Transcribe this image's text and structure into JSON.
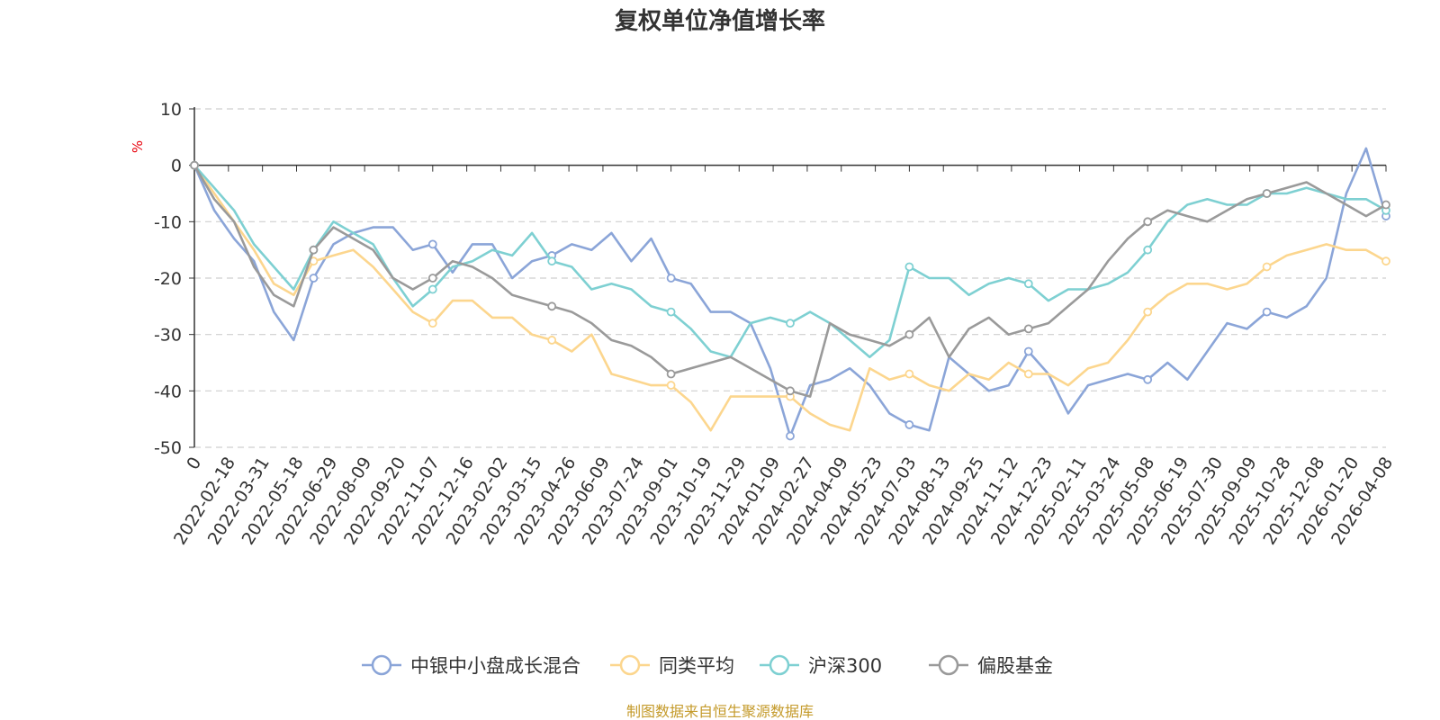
{
  "chart_data": {
    "type": "line",
    "title": "复权单位净值增长率",
    "ylabel": "%",
    "xlabel": "",
    "ylim": [
      -50,
      10
    ],
    "yticks": [
      10,
      0,
      -10,
      -20,
      -30,
      -40,
      -50
    ],
    "xtick_labels": [
      "0",
      "2022-02-18",
      "2022-03-31",
      "2022-05-18",
      "2022-06-29",
      "2022-08-09",
      "2022-09-20",
      "2022-11-07",
      "2022-12-16",
      "2023-02-02",
      "2023-03-15",
      "2023-04-26",
      "2023-06-09",
      "2023-07-24",
      "2023-09-01",
      "2023-10-19",
      "2023-11-29",
      "2024-01-09",
      "2024-02-27",
      "2024-04-09",
      "2024-05-23",
      "2024-07-03",
      "2024-08-13",
      "2024-09-25",
      "2024-11-12",
      "2024-12-23",
      "2025-02-11",
      "2025-03-24",
      "2025-05-08",
      "2025-06-19",
      "2025-07-30",
      "2025-09-09",
      "2025-10-28",
      "2025-12-08",
      "2026-01-20",
      "2026-04-08"
    ],
    "legend_position": "bottom",
    "source": "制图数据来自恒生聚源数据库",
    "series": [
      {
        "name": "中银中小盘成长混合",
        "color": "#8ba5d8",
        "values": [
          0,
          -8,
          -13,
          -17,
          -26,
          -31,
          -20,
          -14,
          -12,
          -11,
          -11,
          -15,
          -14,
          -19,
          -14,
          -14,
          -20,
          -17,
          -16,
          -14,
          -15,
          -12,
          -17,
          -13,
          -20,
          -21,
          -26,
          -26,
          -28,
          -36,
          -48,
          -39,
          -38,
          -36,
          -39,
          -44,
          -46,
          -47,
          -34,
          -37,
          -40,
          -39,
          -33,
          -37,
          -44,
          -39,
          -38,
          -37,
          -38,
          -35,
          -38,
          -33,
          -28,
          -29,
          -26,
          -27,
          -25,
          -20,
          -5,
          3,
          -9
        ]
      },
      {
        "name": "同类平均",
        "color": "#fcd68e",
        "values": [
          0,
          -5,
          -10,
          -15,
          -21,
          -23,
          -17,
          -16,
          -15,
          -18,
          -22,
          -26,
          -28,
          -24,
          -24,
          -27,
          -27,
          -30,
          -31,
          -33,
          -30,
          -37,
          -38,
          -39,
          -39,
          -42,
          -47,
          -41,
          -41,
          -41,
          -41,
          -44,
          -46,
          -47,
          -36,
          -38,
          -37,
          -39,
          -40,
          -37,
          -38,
          -35,
          -37,
          -37,
          -39,
          -36,
          -35,
          -31,
          -26,
          -23,
          -21,
          -21,
          -22,
          -21,
          -18,
          -16,
          -15,
          -14,
          -15,
          -15,
          -17
        ]
      },
      {
        "name": "沪深300",
        "color": "#7ed0d2",
        "values": [
          0,
          -4,
          -8,
          -14,
          -18,
          -22,
          -15,
          -10,
          -12,
          -14,
          -20,
          -25,
          -22,
          -18,
          -17,
          -15,
          -16,
          -12,
          -17,
          -18,
          -22,
          -21,
          -22,
          -25,
          -26,
          -29,
          -33,
          -34,
          -28,
          -27,
          -28,
          -26,
          -28,
          -31,
          -34,
          -31,
          -18,
          -20,
          -20,
          -23,
          -21,
          -20,
          -21,
          -24,
          -22,
          -22,
          -21,
          -19,
          -15,
          -10,
          -7,
          -6,
          -7,
          -7,
          -5,
          -5,
          -4,
          -5,
          -6,
          -6,
          -8
        ]
      },
      {
        "name": "偏股基金",
        "color": "#9a9a9a",
        "values": [
          0,
          -6,
          -10,
          -18,
          -23,
          -25,
          -15,
          -11,
          -13,
          -15,
          -20,
          -22,
          -20,
          -17,
          -18,
          -20,
          -23,
          -24,
          -25,
          -26,
          -28,
          -31,
          -32,
          -34,
          -37,
          -36,
          -35,
          -34,
          -36,
          -38,
          -40,
          -41,
          -28,
          -30,
          -31,
          -32,
          -30,
          -27,
          -34,
          -29,
          -27,
          -30,
          -29,
          -28,
          -25,
          -22,
          -17,
          -13,
          -10,
          -8,
          -9,
          -10,
          -8,
          -6,
          -5,
          -4,
          -3,
          -5,
          -7,
          -9,
          -7
        ]
      }
    ]
  }
}
